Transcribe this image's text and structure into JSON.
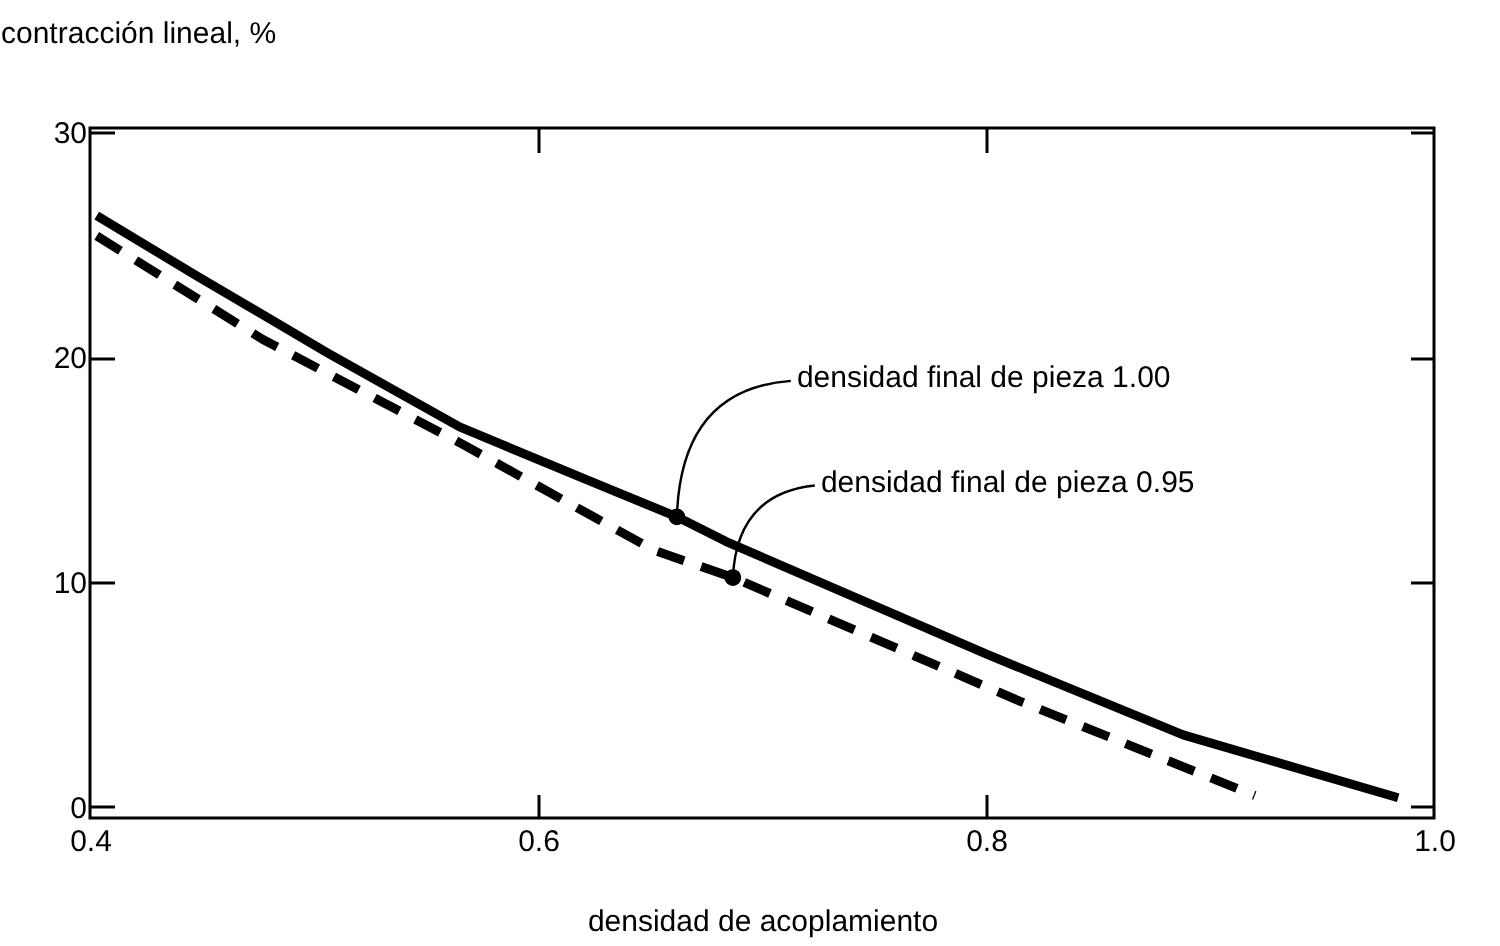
{
  "chart_data": {
    "type": "line",
    "ylabel": "contracción lineal, %",
    "xlabel": "densidad de acoplamiento",
    "xlim": [
      0.4,
      1.0
    ],
    "xticks": [
      0.4,
      0.6,
      0.8,
      {
        "value": 1.0,
        "label": "1.0"
      }
    ],
    "ylim": [
      -0.5,
      30.2
    ],
    "yticks": [
      0,
      10,
      20,
      30
    ],
    "grid": false,
    "marker": "none",
    "series": [
      {
        "color": "#000000",
        "line_style": "solid",
        "x": [
          0.403,
          0.448,
          0.506,
          0.565,
          0.623,
          0.662,
          0.684,
          0.8,
          0.888,
          0.984
        ],
        "values": [
          26.3,
          23.6,
          20.2,
          16.9,
          14.5,
          12.9,
          11.8,
          6.8,
          3.2,
          0.4
        ]
      },
      {
        "color": "#000000",
        "line_style": "dashed",
        "x": [
          0.403,
          0.477,
          0.565,
          0.652,
          0.687,
          0.815,
          0.92
        ],
        "values": [
          25.4,
          20.8,
          16.2,
          11.4,
          10.2,
          4.7,
          0.5
        ]
      }
    ],
    "annotations": [
      {
        "text": "densidad final de pieza 1.00",
        "x": 0.662,
        "y": 12.9
      },
      {
        "text": "densidad final de pieza 0.95",
        "x": 0.687,
        "y": 10.2
      }
    ]
  }
}
